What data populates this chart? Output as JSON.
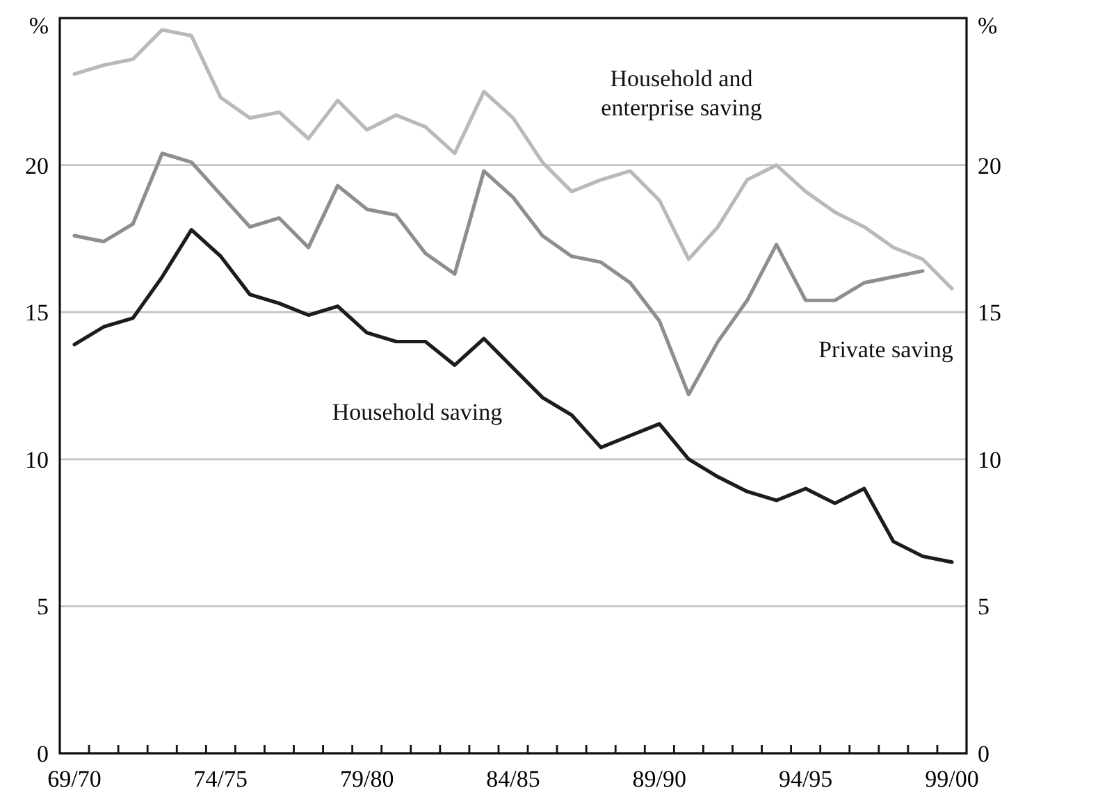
{
  "chart_data": {
    "type": "line",
    "categories": [
      "69/70",
      null,
      null,
      null,
      null,
      "74/75",
      null,
      null,
      null,
      null,
      "79/80",
      null,
      null,
      null,
      null,
      "84/85",
      null,
      null,
      null,
      null,
      "89/90",
      null,
      null,
      null,
      null,
      "94/95",
      null,
      null,
      null,
      null,
      "99/00"
    ],
    "series": [
      {
        "name": "Household and enterprise saving",
        "color": "#b9b9b9",
        "values": [
          23.1,
          23.4,
          23.6,
          24.6,
          24.4,
          22.3,
          21.6,
          21.8,
          20.9,
          22.2,
          21.2,
          21.7,
          21.3,
          20.4,
          22.5,
          21.6,
          20.1,
          19.1,
          19.5,
          19.8,
          18.8,
          16.8,
          17.9,
          19.5,
          20.0,
          19.1,
          18.4,
          17.9,
          17.2,
          16.8,
          15.8
        ]
      },
      {
        "name": "Private saving",
        "color": "#8e8e8e",
        "values": [
          17.6,
          17.4,
          18.0,
          20.4,
          20.1,
          19.0,
          17.9,
          18.2,
          17.2,
          19.3,
          18.5,
          18.3,
          17.0,
          16.3,
          19.8,
          18.9,
          17.6,
          16.9,
          16.7,
          16.0,
          14.7,
          12.2,
          14.0,
          15.4,
          17.3,
          15.4,
          15.4,
          16.0,
          16.2,
          16.4,
          null
        ]
      },
      {
        "name": "Household saving",
        "color": "#1c1c1c",
        "values": [
          13.9,
          14.5,
          14.8,
          16.2,
          17.8,
          16.9,
          15.6,
          15.3,
          14.9,
          15.2,
          14.3,
          14.0,
          14.0,
          13.2,
          14.1,
          13.1,
          12.1,
          11.5,
          10.4,
          10.8,
          11.2,
          10.0,
          9.4,
          8.9,
          8.6,
          9.0,
          8.5,
          9.0,
          7.2,
          6.7,
          6.5
        ]
      }
    ],
    "ylim": [
      0,
      25
    ],
    "yticks": [
      0,
      5,
      10,
      15,
      20,
      {
        "value": 25,
        "label": "%"
      }
    ],
    "y2lim": [
      0,
      25
    ],
    "y2ticks": [
      0,
      5,
      10,
      15,
      20,
      {
        "value": 25,
        "label": "%"
      }
    ],
    "grid": "y",
    "marker": "none",
    "line_style": "solid"
  }
}
